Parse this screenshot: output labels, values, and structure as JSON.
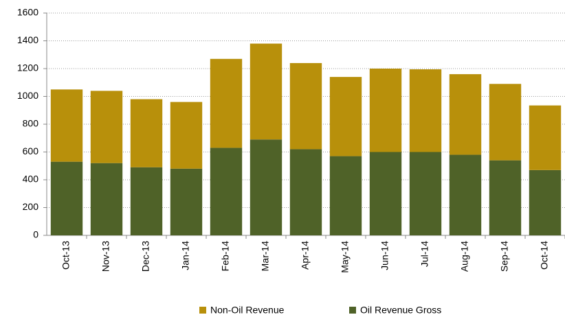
{
  "chart_data": {
    "type": "stacked_bar",
    "categories": [
      "Oct-13",
      "Nov-13",
      "Dec-13",
      "Jan-14",
      "Feb-14",
      "Mar-14",
      "Apr-14",
      "May-14",
      "Jun-14",
      "Jul-14",
      "Aug-14",
      "Sep-14",
      "Oct-14"
    ],
    "series": [
      {
        "name": "Non-Oil Revenue",
        "color": "#b8900b",
        "values": [
          520,
          520,
          490,
          480,
          640,
          690,
          620,
          570,
          600,
          595,
          580,
          550,
          465
        ]
      },
      {
        "name": "Oil Revenue Gross",
        "color": "#4f6228",
        "values": [
          530,
          520,
          490,
          480,
          630,
          690,
          620,
          570,
          600,
          600,
          580,
          540,
          470
        ]
      }
    ],
    "ylim": [
      0,
      1600
    ],
    "yticks": [
      0,
      200,
      400,
      600,
      800,
      1000,
      1200,
      1400,
      1600
    ],
    "grid": true,
    "legend": "bottom"
  }
}
